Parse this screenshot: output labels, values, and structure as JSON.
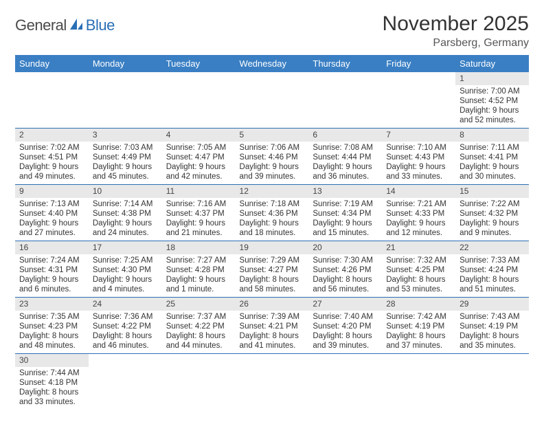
{
  "logo": {
    "text1": "General",
    "text2": "Blue"
  },
  "title": "November 2025",
  "location": "Parsberg, Germany",
  "dayHeaders": [
    "Sunday",
    "Monday",
    "Tuesday",
    "Wednesday",
    "Thursday",
    "Friday",
    "Saturday"
  ],
  "colors": {
    "headerBg": "#3a7fc4",
    "ruleLine": "#2a6fb5",
    "dayNumBg": "#e8e8e8"
  },
  "weeks": [
    [
      null,
      null,
      null,
      null,
      null,
      null,
      {
        "n": "1",
        "sr": "Sunrise: 7:00 AM",
        "ss": "Sunset: 4:52 PM",
        "dl": "Daylight: 9 hours and 52 minutes."
      }
    ],
    [
      {
        "n": "2",
        "sr": "Sunrise: 7:02 AM",
        "ss": "Sunset: 4:51 PM",
        "dl": "Daylight: 9 hours and 49 minutes."
      },
      {
        "n": "3",
        "sr": "Sunrise: 7:03 AM",
        "ss": "Sunset: 4:49 PM",
        "dl": "Daylight: 9 hours and 45 minutes."
      },
      {
        "n": "4",
        "sr": "Sunrise: 7:05 AM",
        "ss": "Sunset: 4:47 PM",
        "dl": "Daylight: 9 hours and 42 minutes."
      },
      {
        "n": "5",
        "sr": "Sunrise: 7:06 AM",
        "ss": "Sunset: 4:46 PM",
        "dl": "Daylight: 9 hours and 39 minutes."
      },
      {
        "n": "6",
        "sr": "Sunrise: 7:08 AM",
        "ss": "Sunset: 4:44 PM",
        "dl": "Daylight: 9 hours and 36 minutes."
      },
      {
        "n": "7",
        "sr": "Sunrise: 7:10 AM",
        "ss": "Sunset: 4:43 PM",
        "dl": "Daylight: 9 hours and 33 minutes."
      },
      {
        "n": "8",
        "sr": "Sunrise: 7:11 AM",
        "ss": "Sunset: 4:41 PM",
        "dl": "Daylight: 9 hours and 30 minutes."
      }
    ],
    [
      {
        "n": "9",
        "sr": "Sunrise: 7:13 AM",
        "ss": "Sunset: 4:40 PM",
        "dl": "Daylight: 9 hours and 27 minutes."
      },
      {
        "n": "10",
        "sr": "Sunrise: 7:14 AM",
        "ss": "Sunset: 4:38 PM",
        "dl": "Daylight: 9 hours and 24 minutes."
      },
      {
        "n": "11",
        "sr": "Sunrise: 7:16 AM",
        "ss": "Sunset: 4:37 PM",
        "dl": "Daylight: 9 hours and 21 minutes."
      },
      {
        "n": "12",
        "sr": "Sunrise: 7:18 AM",
        "ss": "Sunset: 4:36 PM",
        "dl": "Daylight: 9 hours and 18 minutes."
      },
      {
        "n": "13",
        "sr": "Sunrise: 7:19 AM",
        "ss": "Sunset: 4:34 PM",
        "dl": "Daylight: 9 hours and 15 minutes."
      },
      {
        "n": "14",
        "sr": "Sunrise: 7:21 AM",
        "ss": "Sunset: 4:33 PM",
        "dl": "Daylight: 9 hours and 12 minutes."
      },
      {
        "n": "15",
        "sr": "Sunrise: 7:22 AM",
        "ss": "Sunset: 4:32 PM",
        "dl": "Daylight: 9 hours and 9 minutes."
      }
    ],
    [
      {
        "n": "16",
        "sr": "Sunrise: 7:24 AM",
        "ss": "Sunset: 4:31 PM",
        "dl": "Daylight: 9 hours and 6 minutes."
      },
      {
        "n": "17",
        "sr": "Sunrise: 7:25 AM",
        "ss": "Sunset: 4:30 PM",
        "dl": "Daylight: 9 hours and 4 minutes."
      },
      {
        "n": "18",
        "sr": "Sunrise: 7:27 AM",
        "ss": "Sunset: 4:28 PM",
        "dl": "Daylight: 9 hours and 1 minute."
      },
      {
        "n": "19",
        "sr": "Sunrise: 7:29 AM",
        "ss": "Sunset: 4:27 PM",
        "dl": "Daylight: 8 hours and 58 minutes."
      },
      {
        "n": "20",
        "sr": "Sunrise: 7:30 AM",
        "ss": "Sunset: 4:26 PM",
        "dl": "Daylight: 8 hours and 56 minutes."
      },
      {
        "n": "21",
        "sr": "Sunrise: 7:32 AM",
        "ss": "Sunset: 4:25 PM",
        "dl": "Daylight: 8 hours and 53 minutes."
      },
      {
        "n": "22",
        "sr": "Sunrise: 7:33 AM",
        "ss": "Sunset: 4:24 PM",
        "dl": "Daylight: 8 hours and 51 minutes."
      }
    ],
    [
      {
        "n": "23",
        "sr": "Sunrise: 7:35 AM",
        "ss": "Sunset: 4:23 PM",
        "dl": "Daylight: 8 hours and 48 minutes."
      },
      {
        "n": "24",
        "sr": "Sunrise: 7:36 AM",
        "ss": "Sunset: 4:22 PM",
        "dl": "Daylight: 8 hours and 46 minutes."
      },
      {
        "n": "25",
        "sr": "Sunrise: 7:37 AM",
        "ss": "Sunset: 4:22 PM",
        "dl": "Daylight: 8 hours and 44 minutes."
      },
      {
        "n": "26",
        "sr": "Sunrise: 7:39 AM",
        "ss": "Sunset: 4:21 PM",
        "dl": "Daylight: 8 hours and 41 minutes."
      },
      {
        "n": "27",
        "sr": "Sunrise: 7:40 AM",
        "ss": "Sunset: 4:20 PM",
        "dl": "Daylight: 8 hours and 39 minutes."
      },
      {
        "n": "28",
        "sr": "Sunrise: 7:42 AM",
        "ss": "Sunset: 4:19 PM",
        "dl": "Daylight: 8 hours and 37 minutes."
      },
      {
        "n": "29",
        "sr": "Sunrise: 7:43 AM",
        "ss": "Sunset: 4:19 PM",
        "dl": "Daylight: 8 hours and 35 minutes."
      }
    ],
    [
      {
        "n": "30",
        "sr": "Sunrise: 7:44 AM",
        "ss": "Sunset: 4:18 PM",
        "dl": "Daylight: 8 hours and 33 minutes."
      },
      null,
      null,
      null,
      null,
      null,
      null
    ]
  ]
}
